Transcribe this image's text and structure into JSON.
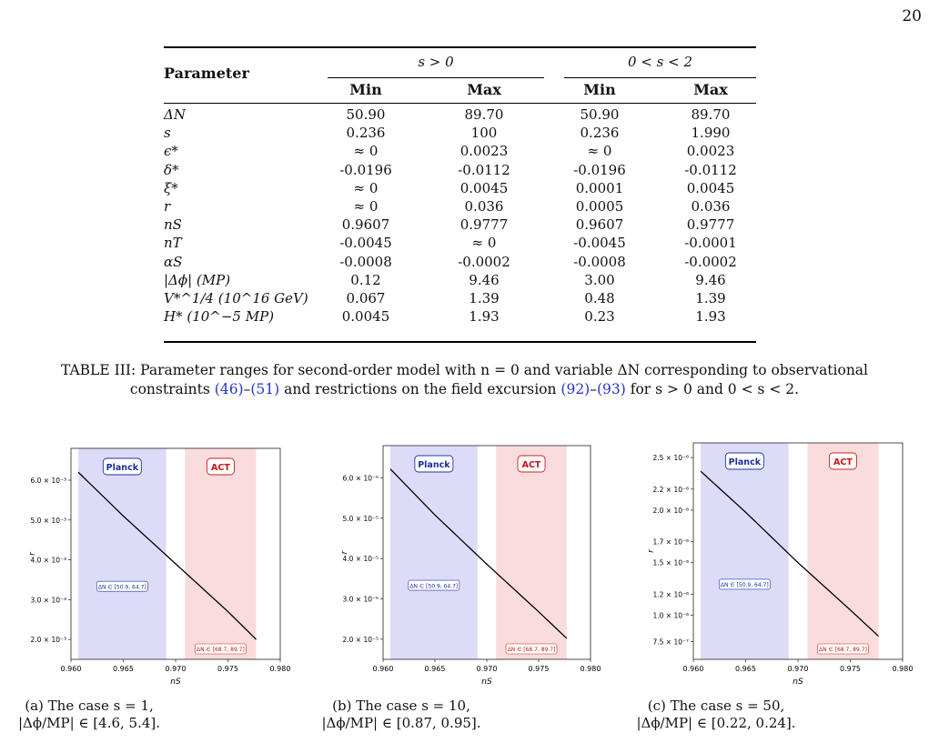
{
  "page_number": "20",
  "table": {
    "col_header": "Parameter",
    "group1": "s > 0",
    "group2": "0 < s < 2",
    "sub_min": "Min",
    "sub_max": "Max",
    "rows": [
      {
        "p": "ΔN",
        "v": [
          "50.90",
          "89.70",
          "50.90",
          "89.70"
        ]
      },
      {
        "p": "s",
        "v": [
          "0.236",
          "100",
          "0.236",
          "1.990"
        ]
      },
      {
        "p": "ϵ*",
        "v": [
          "≈ 0",
          "0.0023",
          "≈ 0",
          "0.0023"
        ]
      },
      {
        "p": "δ*",
        "v": [
          "-0.0196",
          "-0.0112",
          "-0.0196",
          "-0.0112"
        ]
      },
      {
        "p": "ξ*",
        "v": [
          "≈ 0",
          "0.0045",
          "0.0001",
          "0.0045"
        ]
      },
      {
        "p": "r",
        "v": [
          "≈ 0",
          "0.036",
          "0.0005",
          "0.036"
        ]
      },
      {
        "p": "nS",
        "v": [
          "0.9607",
          "0.9777",
          "0.9607",
          "0.9777"
        ]
      },
      {
        "p": "nT",
        "v": [
          "-0.0045",
          "≈ 0",
          "-0.0045",
          "-0.0001"
        ]
      },
      {
        "p": "αS",
        "v": [
          "-0.0008",
          "-0.0002",
          "-0.0008",
          "-0.0002"
        ]
      },
      {
        "p": "|Δϕ| (MP)",
        "v": [
          "0.12",
          "9.46",
          "3.00",
          "9.46"
        ]
      },
      {
        "p": "V*^1/4 (10^16 GeV)",
        "v": [
          "0.067",
          "1.39",
          "0.48",
          "1.39"
        ]
      },
      {
        "p": "H* (10^−5 MP)",
        "v": [
          "0.0045",
          "1.93",
          "0.23",
          "1.93"
        ]
      }
    ]
  },
  "caption": {
    "prefix": "TABLE III: Parameter ranges for second-order model with n = 0 and variable ΔN corresponding to observational",
    "line2_a": "constraints ",
    "ref1": "(46)",
    "dash": "–",
    "ref2": "(51)",
    "line2_b": " and restrictions on the field excursion ",
    "ref3": "(92)",
    "ref4": "(93)",
    "line2_c": " for s > 0 and 0 < s < 2."
  },
  "chart_data": [
    {
      "type": "line",
      "x": [
        0.9607,
        0.965,
        0.97,
        0.975,
        0.9777
      ],
      "y": [
        0.0062,
        0.0051,
        0.0039,
        0.0027,
        0.002
      ],
      "xlim": [
        0.96,
        0.98
      ],
      "ylim": [
        0.0015,
        0.0068
      ],
      "xticks": [
        "0.960",
        "0.965",
        "0.970",
        "0.975",
        "0.980"
      ],
      "yticks": [
        {
          "v": 0.006,
          "label": "6.0 × 10⁻³"
        },
        {
          "v": 0.005,
          "label": "5.0 × 10⁻³"
        },
        {
          "v": 0.004,
          "label": "4.0 × 10⁻³"
        },
        {
          "v": 0.003,
          "label": "3.0 × 10⁻³"
        },
        {
          "v": 0.002,
          "label": "2.0 × 10⁻³"
        }
      ],
      "xlabel": "nS",
      "ylabel": "r",
      "bands": [
        {
          "name": "Planck",
          "x0": 0.9607,
          "x1": 0.9691,
          "color": "#dcdcf8"
        },
        {
          "name": "ACT",
          "x0": 0.9709,
          "x1": 0.9777,
          "color": "#fbdcdc"
        }
      ],
      "annotations": [
        "ΔN ∈ [50.9, 64.7]",
        "ΔN ∈ [68.7, 89.7]"
      ],
      "subcaption": [
        "(a) The case s = 1,",
        "|Δϕ/MP| ∈ [4.6, 5.4]."
      ]
    },
    {
      "type": "line",
      "x": [
        0.9607,
        0.965,
        0.97,
        0.975,
        0.9777
      ],
      "y": [
        6.22e-05,
        5.08e-05,
        3.86e-05,
        2.68e-05,
        2.02e-05
      ],
      "xlim": [
        0.96,
        0.98
      ],
      "ylim": [
        1.5e-05,
        6.8e-05
      ],
      "xticks": [
        "0.960",
        "0.965",
        "0.970",
        "0.975",
        "0.980"
      ],
      "yticks": [
        {
          "v": 6e-05,
          "label": "6.0 × 10⁻⁵"
        },
        {
          "v": 5e-05,
          "label": "5.0 × 10⁻⁵"
        },
        {
          "v": 4e-05,
          "label": "4.0 × 10⁻⁵"
        },
        {
          "v": 3e-05,
          "label": "3.0 × 10⁻⁵"
        },
        {
          "v": 2e-05,
          "label": "2.0 × 10⁻⁵"
        }
      ],
      "xlabel": "nS",
      "ylabel": "r",
      "bands": [
        {
          "name": "Planck",
          "x0": 0.9607,
          "x1": 0.9691,
          "color": "#dcdcf8"
        },
        {
          "name": "ACT",
          "x0": 0.9709,
          "x1": 0.9777,
          "color": "#fbdcdc"
        }
      ],
      "annotations": [
        "ΔN ∈ [50.9, 64.7]",
        "ΔN ∈ [68.7, 89.7]"
      ],
      "subcaption": [
        "(b) The case s = 10,",
        "|Δϕ/MP| ∈ [0.87, 0.95]."
      ]
    },
    {
      "type": "line",
      "x": [
        0.9607,
        0.965,
        0.97,
        0.975,
        0.9777
      ],
      "y": [
        2.37e-06,
        1.98e-06,
        1.5e-06,
        1.05e-06,
        8e-07
      ],
      "xlim": [
        0.96,
        0.98
      ],
      "ylim": [
        5.8e-07,
        2.64e-06
      ],
      "xticks": [
        "0.960",
        "0.965",
        "0.970",
        "0.975",
        "0.980"
      ],
      "yticks": [
        {
          "v": 2.5e-06,
          "label": "2.5 × 10⁻⁶"
        },
        {
          "v": 2.2e-06,
          "label": "2.2 × 10⁻⁶"
        },
        {
          "v": 2e-06,
          "label": "2.0 × 10⁻⁶"
        },
        {
          "v": 1.7e-06,
          "label": "1.7 × 10⁻⁶"
        },
        {
          "v": 1.5e-06,
          "label": "1.5 × 10⁻⁶"
        },
        {
          "v": 1.2e-06,
          "label": "1.2 × 10⁻⁶"
        },
        {
          "v": 1e-06,
          "label": "1.0 × 10⁻⁶"
        },
        {
          "v": 7.5e-07,
          "label": "7.5 × 10⁻⁷"
        }
      ],
      "xlabel": "nS",
      "ylabel": "r",
      "bands": [
        {
          "name": "Planck",
          "x0": 0.9607,
          "x1": 0.9691,
          "color": "#dcdcf8"
        },
        {
          "name": "ACT",
          "x0": 0.9709,
          "x1": 0.9777,
          "color": "#fbdcdc"
        }
      ],
      "annotations": [
        "ΔN ∈ [50.9, 64.7]",
        "ΔN ∈ [68.7, 89.7]"
      ],
      "subcaption": [
        "(c) The case s = 50,",
        "|Δϕ/MP| ∈ [0.22, 0.24]."
      ]
    }
  ]
}
